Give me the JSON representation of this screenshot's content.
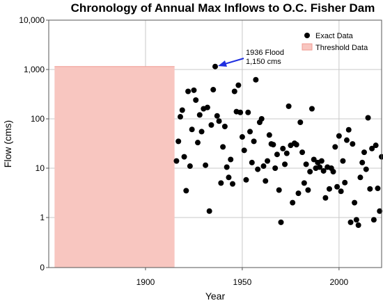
{
  "chart_data": {
    "type": "scatter",
    "title": "Chronology of Annual Max Inflows to O.C. Fisher Dam",
    "xlabel": "Year",
    "ylabel": "Flow (cms)",
    "xlim": [
      1850,
      2022
    ],
    "ylim": [
      0,
      10000
    ],
    "y_scale": "log",
    "x_ticks": [
      1900,
      1950,
      2000
    ],
    "y_ticks": [
      {
        "value": 0,
        "label": "0"
      },
      {
        "value": 1,
        "label": "1"
      },
      {
        "value": 10,
        "label": "10"
      },
      {
        "value": 100,
        "label": "100"
      },
      {
        "value": 1000,
        "label": "1,000"
      },
      {
        "value": 10000,
        "label": "10,000"
      }
    ],
    "grid": true,
    "legend_position": "top-right",
    "legend": [
      "Exact Data",
      "Threshold Data"
    ],
    "threshold": {
      "name": "Threshold Data",
      "x_start": 1853,
      "x_end": 1915,
      "y": 1150,
      "color": "#f8c6c0",
      "edge_color": "#f09a92"
    },
    "annotation": {
      "line1": "1936 Flood",
      "line2": "1,150 cms",
      "x": 1936,
      "y": 1150,
      "arrow_color": "#1f2fe0"
    },
    "series": [
      {
        "name": "Exact Data",
        "color": "#000000",
        "points": [
          [
            1916,
            14
          ],
          [
            1917,
            35
          ],
          [
            1918,
            110
          ],
          [
            1919,
            150
          ],
          [
            1920,
            17
          ],
          [
            1921,
            3.5
          ],
          [
            1922,
            360
          ],
          [
            1923,
            11
          ],
          [
            1924,
            61
          ],
          [
            1925,
            380
          ],
          [
            1926,
            240
          ],
          [
            1927,
            33
          ],
          [
            1928,
            120
          ],
          [
            1929,
            55
          ],
          [
            1930,
            160
          ],
          [
            1931,
            11.5
          ],
          [
            1932,
            170
          ],
          [
            1933,
            1.35
          ],
          [
            1934,
            75
          ],
          [
            1935,
            390
          ],
          [
            1936,
            1150
          ],
          [
            1937,
            115
          ],
          [
            1938,
            90
          ],
          [
            1939,
            5
          ],
          [
            1940,
            27
          ],
          [
            1941,
            70
          ],
          [
            1942,
            10.5
          ],
          [
            1943,
            6.5
          ],
          [
            1944,
            15
          ],
          [
            1945,
            4.8
          ],
          [
            1946,
            360
          ],
          [
            1947,
            140
          ],
          [
            1948,
            480
          ],
          [
            1949,
            135
          ],
          [
            1950,
            43
          ],
          [
            1951,
            23
          ],
          [
            1952,
            5.8
          ],
          [
            1953,
            135
          ],
          [
            1954,
            55
          ],
          [
            1955,
            13
          ],
          [
            1956,
            35
          ],
          [
            1957,
            620
          ],
          [
            1958,
            9.5
          ],
          [
            1959,
            85
          ],
          [
            1960,
            100
          ],
          [
            1961,
            11
          ],
          [
            1962,
            5.5
          ],
          [
            1963,
            14
          ],
          [
            1964,
            47
          ],
          [
            1965,
            31
          ],
          [
            1966,
            30
          ],
          [
            1967,
            10
          ],
          [
            1968,
            19
          ],
          [
            1969,
            3.6
          ],
          [
            1970,
            0.8
          ],
          [
            1971,
            25
          ],
          [
            1972,
            12
          ],
          [
            1973,
            20
          ],
          [
            1974,
            180
          ],
          [
            1975,
            29
          ],
          [
            1976,
            2
          ],
          [
            1977,
            32
          ],
          [
            1978,
            30
          ],
          [
            1979,
            3.1
          ],
          [
            1980,
            85
          ],
          [
            1981,
            21
          ],
          [
            1982,
            5
          ],
          [
            1983,
            12
          ],
          [
            1984,
            3.6
          ],
          [
            1985,
            8.5
          ],
          [
            1986,
            160
          ],
          [
            1987,
            15
          ],
          [
            1988,
            10
          ],
          [
            1989,
            13
          ],
          [
            1990,
            10.5
          ],
          [
            1991,
            14
          ],
          [
            1992,
            8.8
          ],
          [
            1993,
            2.5
          ],
          [
            1994,
            10.5
          ],
          [
            1995,
            3.8
          ],
          [
            1996,
            10
          ],
          [
            1997,
            8.5
          ],
          [
            1998,
            27
          ],
          [
            1999,
            4.2
          ],
          [
            2000,
            45
          ],
          [
            2001,
            3.4
          ],
          [
            2002,
            14
          ],
          [
            2003,
            5.1
          ],
          [
            2004,
            37
          ],
          [
            2005,
            60
          ],
          [
            2006,
            0.8
          ],
          [
            2007,
            31
          ],
          [
            2008,
            2
          ],
          [
            2009,
            0.9
          ],
          [
            2010,
            0.7
          ],
          [
            2011,
            6.5
          ],
          [
            2012,
            13
          ],
          [
            2013,
            21
          ],
          [
            2014,
            9.5
          ],
          [
            2015,
            105
          ],
          [
            2016,
            3.8
          ],
          [
            2017,
            25
          ],
          [
            2018,
            0.9
          ],
          [
            2019,
            29
          ],
          [
            2020,
            3.9
          ],
          [
            2021,
            1.35
          ],
          [
            2022,
            17
          ]
        ]
      }
    ]
  }
}
